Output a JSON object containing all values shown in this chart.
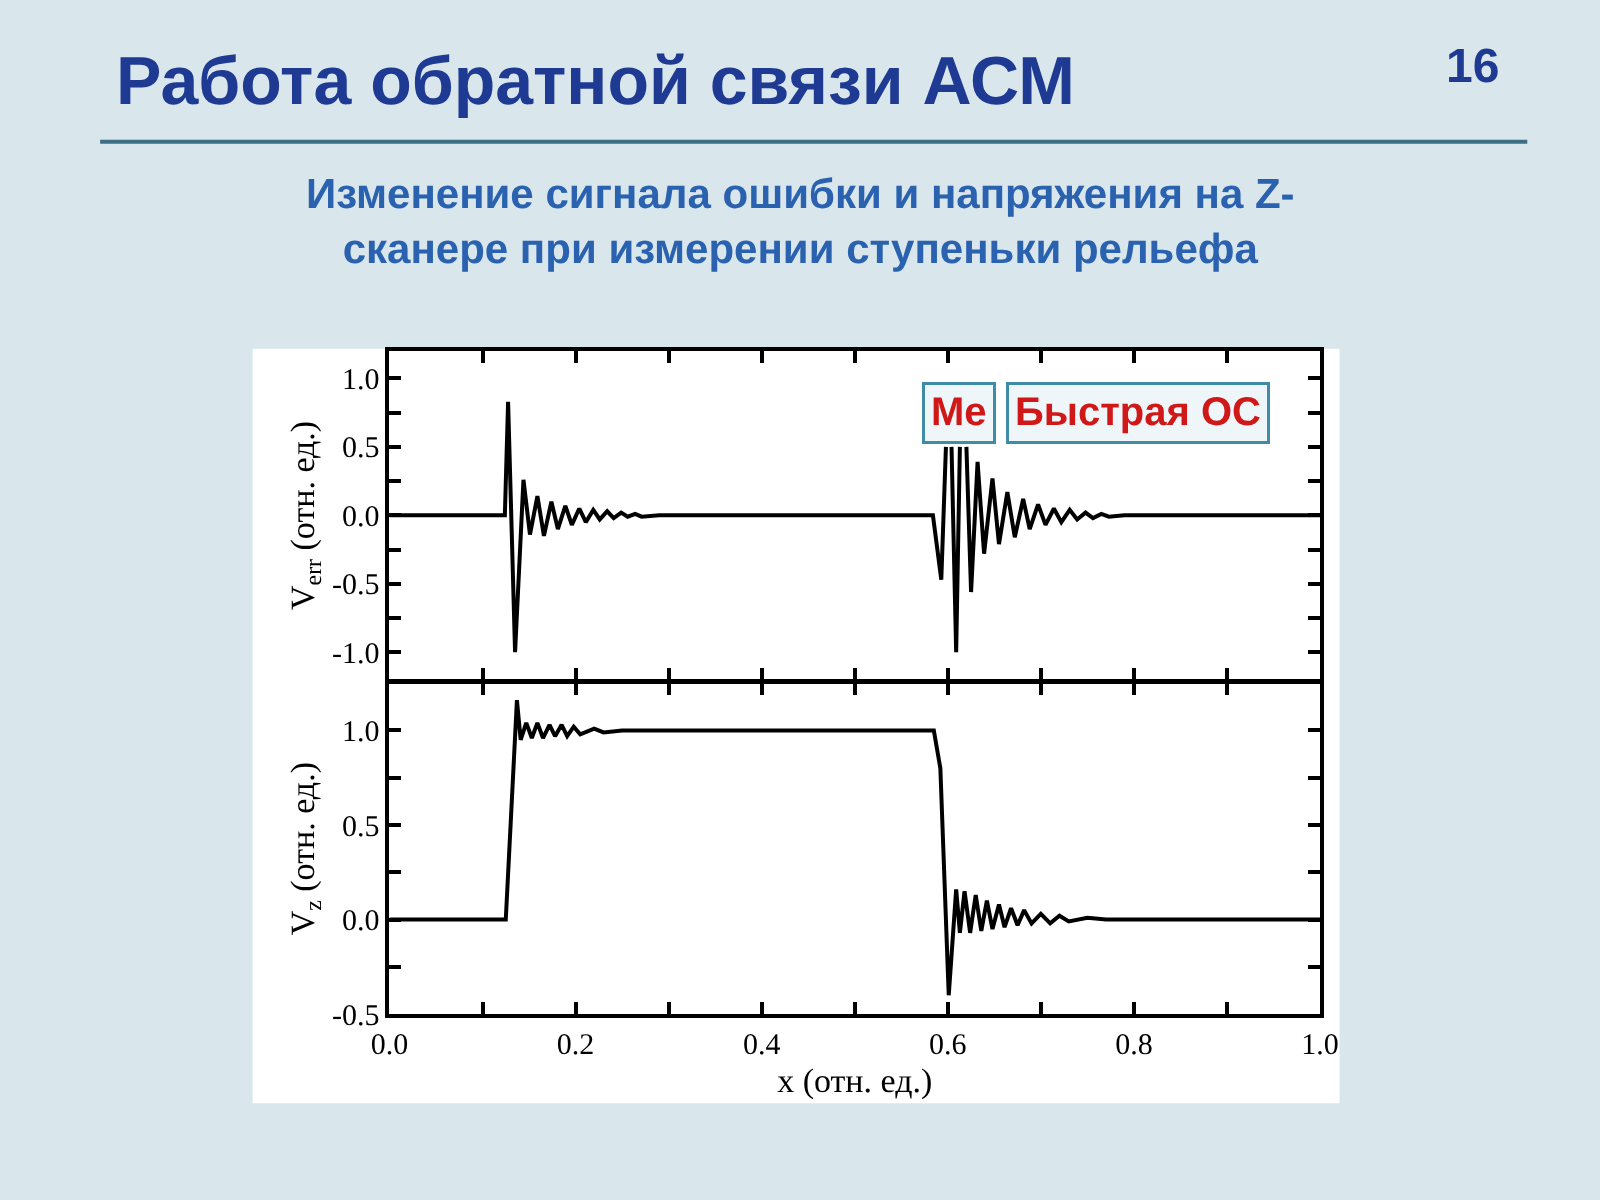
{
  "chart_data": [
    {
      "type": "line",
      "title": "Работа обратной связи АСМ",
      "subtitle": "Изменение сигнала ошибки и напряжения на Z-сканере при измерении ступеньки рельефа",
      "ylabel": "V$_{err}$ (отн. ед.)",
      "annotations": [
        "16",
        "Ме",
        "Быстрая ОС"
      ],
      "xlim": [
        0.0,
        1.0
      ],
      "xticks": [
        {
          "value": 0.0,
          "label": null
        },
        {
          "value": 0.1,
          "label": null
        },
        {
          "value": 0.2,
          "label": null
        },
        {
          "value": 0.3,
          "label": null
        },
        {
          "value": 0.4,
          "label": null
        },
        {
          "value": 0.5,
          "label": null
        },
        {
          "value": 0.6,
          "label": null
        },
        {
          "value": 0.7,
          "label": null
        },
        {
          "value": 0.8,
          "label": null
        },
        {
          "value": 0.9,
          "label": null
        },
        {
          "value": 1.0,
          "label": null
        }
      ],
      "ylim": [
        -1.2,
        1.2
      ],
      "yticks": [
        {
          "value": -1.0,
          "label": "-1.0"
        },
        {
          "value": -0.75,
          "label": null
        },
        {
          "value": -0.5,
          "label": "-0.5"
        },
        {
          "value": -0.25,
          "label": null
        },
        {
          "value": 0.0,
          "label": "0.0"
        },
        {
          "value": 0.25,
          "label": null
        },
        {
          "value": 0.5,
          "label": "0.5"
        },
        {
          "value": 0.75,
          "label": null
        },
        {
          "value": 1.0,
          "label": "1.0"
        }
      ],
      "tick_labels": "y",
      "marker": "none",
      "line_style": "solid",
      "series": [
        {
          "color": "#000000",
          "x": [
            0.0,
            0.124,
            0.1275,
            0.135,
            0.144,
            0.151,
            0.159,
            0.166,
            0.174,
            0.181,
            0.189,
            0.196,
            0.204,
            0.211,
            0.219,
            0.226,
            0.234,
            0.241,
            0.249,
            0.256,
            0.264,
            0.271,
            0.29,
            0.584,
            0.593,
            0.598,
            0.601,
            0.604,
            0.609,
            0.613,
            0.616,
            0.62,
            0.625,
            0.632,
            0.639,
            0.648,
            0.655,
            0.664,
            0.672,
            0.681,
            0.688,
            0.697,
            0.705,
            0.714,
            0.722,
            0.731,
            0.739,
            0.748,
            0.756,
            0.765,
            0.773,
            0.79,
            1.0
          ],
          "values": [
            0.0,
            0.0,
            0.83,
            -1.0,
            0.26,
            -0.14,
            0.14,
            -0.15,
            0.1,
            -0.1,
            0.07,
            -0.07,
            0.05,
            -0.05,
            0.04,
            -0.03,
            0.03,
            -0.02,
            0.02,
            -0.01,
            0.01,
            -0.01,
            0.0,
            0.0,
            -0.47,
            0.5,
            null,
            0.5,
            -1.0,
            0.5,
            null,
            0.5,
            -0.56,
            0.39,
            -0.28,
            0.27,
            -0.21,
            0.17,
            -0.16,
            0.12,
            -0.1,
            0.08,
            -0.07,
            0.05,
            -0.05,
            0.04,
            -0.03,
            0.02,
            -0.02,
            0.01,
            -0.01,
            0.0,
            0.0
          ]
        }
      ]
    },
    {
      "type": "line",
      "xlabel": "x (отн. ед.)",
      "ylabel": "V$_{z}$ (отн. ед.)",
      "xlim": [
        0.0,
        1.0
      ],
      "xticks": [
        {
          "value": 0.0,
          "label": "0.0"
        },
        {
          "value": 0.1,
          "label": null
        },
        {
          "value": 0.2,
          "label": "0.2"
        },
        {
          "value": 0.3,
          "label": null
        },
        {
          "value": 0.4,
          "label": "0.4"
        },
        {
          "value": 0.5,
          "label": null
        },
        {
          "value": 0.6,
          "label": "0.6"
        },
        {
          "value": 0.7,
          "label": null
        },
        {
          "value": 0.8,
          "label": "0.8"
        },
        {
          "value": 0.9,
          "label": null
        },
        {
          "value": 1.0,
          "label": "1.0"
        }
      ],
      "ylim": [
        -0.5,
        1.25
      ],
      "yticks": [
        {
          "value": -0.5,
          "label": "-0.5"
        },
        {
          "value": -0.25,
          "label": null
        },
        {
          "value": 0.0,
          "label": "0.0"
        },
        {
          "value": 0.25,
          "label": null
        },
        {
          "value": 0.5,
          "label": "0.5"
        },
        {
          "value": 0.75,
          "label": null
        },
        {
          "value": 1.0,
          "label": "1.0"
        }
      ],
      "marker": "none",
      "line_style": "solid",
      "series": [
        {
          "color": "#000000",
          "x": [
            0.0,
            0.125,
            0.137,
            0.141,
            0.147,
            0.153,
            0.159,
            0.165,
            0.172,
            0.178,
            0.185,
            0.191,
            0.198,
            0.205,
            0.22,
            0.23,
            0.25,
            0.585,
            0.592,
            0.601,
            0.609,
            0.613,
            0.618,
            0.624,
            0.63,
            0.636,
            0.642,
            0.648,
            0.655,
            0.661,
            0.668,
            0.675,
            0.682,
            0.69,
            0.7,
            0.71,
            0.72,
            0.73,
            0.75,
            0.77,
            1.0
          ],
          "values": [
            0.0,
            0.0,
            1.16,
            0.95,
            1.04,
            0.96,
            1.04,
            0.96,
            1.03,
            0.97,
            1.03,
            0.97,
            1.02,
            0.98,
            1.01,
            0.99,
            1.0,
            1.0,
            0.8,
            -0.4,
            0.16,
            -0.07,
            0.15,
            -0.07,
            0.13,
            -0.06,
            0.1,
            -0.05,
            0.08,
            -0.04,
            0.06,
            -0.03,
            0.05,
            -0.02,
            0.03,
            -0.02,
            0.02,
            -0.01,
            0.01,
            0.0,
            0.0
          ]
        }
      ]
    }
  ]
}
